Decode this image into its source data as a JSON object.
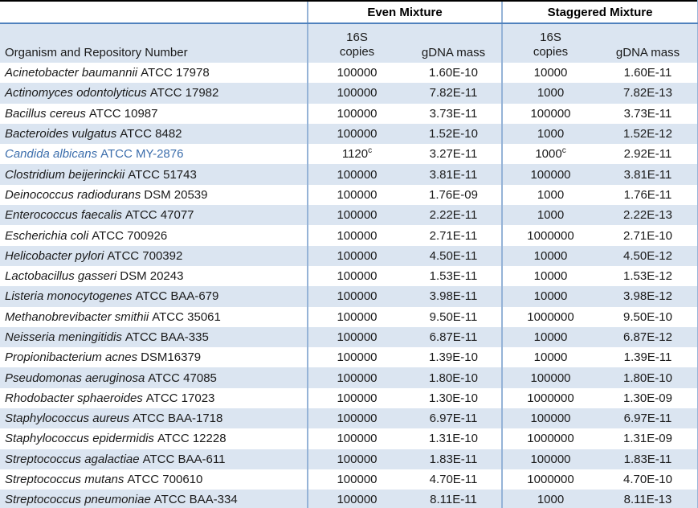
{
  "table": {
    "org_header": "Organism and Repository Number",
    "group_headers": [
      "Even Mixture",
      "Staggered Mixture"
    ],
    "sub_headers": {
      "copies_line1": "16S",
      "copies_line2": "copies",
      "mass": "gDNA mass"
    },
    "footnote_marker": "c",
    "colors": {
      "band": "#dbe5f1",
      "border_strong": "#4f81bd",
      "border_light": "#95b3d7",
      "accent_text": "#3c6eac",
      "top_rule": "#000000"
    },
    "rows": [
      {
        "organism_italic": "Acinetobacter baumannii",
        "organism_roman": "ATCC 17978",
        "even_copies": "100000",
        "even_mass": "1.60E-10",
        "staggered_copies": "10000",
        "staggered_mass": "1.60E-11",
        "accent": false
      },
      {
        "organism_italic": "Actinomyces odontolyticus",
        "organism_roman": "ATCC 17982",
        "even_copies": "100000",
        "even_mass": "7.82E-11",
        "staggered_copies": "1000",
        "staggered_mass": "7.82E-13",
        "accent": false
      },
      {
        "organism_italic": "Bacillus cereus",
        "organism_roman": "ATCC 10987",
        "even_copies": "100000",
        "even_mass": "3.73E-11",
        "staggered_copies": "100000",
        "staggered_mass": "3.73E-11",
        "accent": false
      },
      {
        "organism_italic": "Bacteroides vulgatus",
        "organism_roman": "ATCC 8482",
        "even_copies": "100000",
        "even_mass": "1.52E-10",
        "staggered_copies": "1000",
        "staggered_mass": "1.52E-12",
        "accent": false
      },
      {
        "organism_italic": "Candida albicans",
        "organism_roman": "ATCC MY-2876",
        "even_copies": "1120",
        "even_copies_sup": "c",
        "even_mass": "3.27E-11",
        "staggered_copies": "1000",
        "staggered_copies_sup": "c",
        "staggered_mass": "2.92E-11",
        "accent": true
      },
      {
        "organism_italic": "Clostridium beijerinckii",
        "organism_roman": "ATCC 51743",
        "even_copies": "100000",
        "even_mass": "3.81E-11",
        "staggered_copies": "100000",
        "staggered_mass": "3.81E-11",
        "accent": false
      },
      {
        "organism_italic": "Deinococcus radiodurans",
        "organism_roman": "DSM 20539",
        "even_copies": "100000",
        "even_mass": "1.76E-09",
        "staggered_copies": "1000",
        "staggered_mass": "1.76E-11",
        "accent": false
      },
      {
        "organism_italic": "Enterococcus faecalis",
        "organism_roman": "ATCC 47077",
        "even_copies": "100000",
        "even_mass": "2.22E-11",
        "staggered_copies": "1000",
        "staggered_mass": "2.22E-13",
        "accent": false
      },
      {
        "organism_italic": "Escherichia coli",
        "organism_roman": "ATCC 700926",
        "even_copies": "100000",
        "even_mass": "2.71E-11",
        "staggered_copies": "1000000",
        "staggered_mass": "2.71E-10",
        "accent": false
      },
      {
        "organism_italic": "Helicobacter pylori",
        "organism_roman": "ATCC 700392",
        "even_copies": "100000",
        "even_mass": "4.50E-11",
        "staggered_copies": "10000",
        "staggered_mass": "4.50E-12",
        "accent": false
      },
      {
        "organism_italic": "Lactobacillus gasseri",
        "organism_roman": "DSM 20243",
        "even_copies": "100000",
        "even_mass": "1.53E-11",
        "staggered_copies": "10000",
        "staggered_mass": "1.53E-12",
        "accent": false
      },
      {
        "organism_italic": "Listeria monocytogenes",
        "organism_roman": "ATCC BAA-679",
        "even_copies": "100000",
        "even_mass": "3.98E-11",
        "staggered_copies": "10000",
        "staggered_mass": "3.98E-12",
        "accent": false
      },
      {
        "organism_italic": "Methanobrevibacter smithii",
        "organism_roman": "ATCC 35061",
        "even_copies": "100000",
        "even_mass": "9.50E-11",
        "staggered_copies": "1000000",
        "staggered_mass": "9.50E-10",
        "accent": false
      },
      {
        "organism_italic": "Neisseria meningitidis",
        "organism_roman": "ATCC BAA-335",
        "even_copies": "100000",
        "even_mass": "6.87E-11",
        "staggered_copies": "10000",
        "staggered_mass": "6.87E-12",
        "accent": false
      },
      {
        "organism_italic": "Propionibacterium acnes",
        "organism_roman": "DSM16379",
        "even_copies": "100000",
        "even_mass": "1.39E-10",
        "staggered_copies": "10000",
        "staggered_mass": "1.39E-11",
        "accent": false
      },
      {
        "organism_italic": "Pseudomonas aeruginosa",
        "organism_roman": "ATCC 47085",
        "even_copies": "100000",
        "even_mass": "1.80E-10",
        "staggered_copies": "100000",
        "staggered_mass": "1.80E-10",
        "accent": false
      },
      {
        "organism_italic": "Rhodobacter sphaeroides",
        "organism_roman": "ATCC 17023",
        "even_copies": "100000",
        "even_mass": "1.30E-10",
        "staggered_copies": "1000000",
        "staggered_mass": "1.30E-09",
        "accent": false
      },
      {
        "organism_italic": "Staphylococcus aureus",
        "organism_roman": "ATCC BAA-1718",
        "even_copies": "100000",
        "even_mass": "6.97E-11",
        "staggered_copies": "100000",
        "staggered_mass": "6.97E-11",
        "accent": false
      },
      {
        "organism_italic": "Staphylococcus epidermidis",
        "organism_roman": "ATCC 12228",
        "even_copies": "100000",
        "even_mass": "1.31E-10",
        "staggered_copies": "1000000",
        "staggered_mass": "1.31E-09",
        "accent": false
      },
      {
        "organism_italic": "Streptococcus agalactiae",
        "organism_roman": "ATCC BAA-611",
        "even_copies": "100000",
        "even_mass": "1.83E-11",
        "staggered_copies": "100000",
        "staggered_mass": "1.83E-11",
        "accent": false
      },
      {
        "organism_italic": "Streptococcus mutans",
        "organism_roman": "ATCC 700610",
        "even_copies": "100000",
        "even_mass": "4.70E-11",
        "staggered_copies": "1000000",
        "staggered_mass": "4.70E-10",
        "accent": false
      },
      {
        "organism_italic": "Streptococcus pneumoniae",
        "organism_roman": "ATCC BAA-334",
        "even_copies": "100000",
        "even_mass": "8.11E-11",
        "staggered_copies": "1000",
        "staggered_mass": "8.11E-13",
        "accent": false
      }
    ]
  }
}
